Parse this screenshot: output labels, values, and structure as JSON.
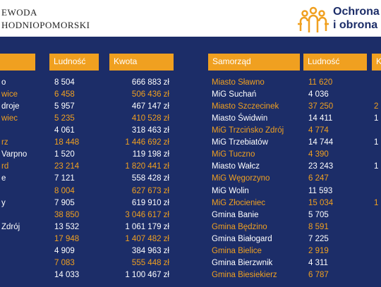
{
  "header": {
    "org_lines": [
      "EWODA",
      "HODNIOPOMORSKI"
    ],
    "logo_lines": [
      "Ochrona",
      "i obrona c"
    ]
  },
  "tables": [
    {
      "headers": [
        null,
        "Ludność",
        "Kwota"
      ],
      "rows": [
        [
          "o",
          "8 504",
          "666 883 zł"
        ],
        [
          "wice",
          "6 458",
          "506 436 zł"
        ],
        [
          "droje",
          "5 957",
          "467 147 zł"
        ],
        [
          "wiec",
          "5 235",
          "410 528 zł"
        ],
        [
          null,
          "4 061",
          "318 463 zł"
        ],
        [
          "rz",
          "18 448",
          "1 446 692 zł"
        ],
        [
          "Varpno",
          "1 520",
          "119 198 zł"
        ],
        [
          "rd",
          "23 214",
          "1 820 441 zł"
        ],
        [
          "e",
          "7 121",
          "558 428 zł"
        ],
        [
          null,
          "8 004",
          "627 673 zł"
        ],
        [
          "y",
          "7 905",
          "619 910 zł"
        ],
        [
          null,
          "38 850",
          "3 046 617 zł"
        ],
        [
          "Zdrój",
          "13 532",
          "1 061 179 zł"
        ],
        [
          null,
          "17 948",
          "1 407 482 zł"
        ],
        [
          null,
          "4 909",
          "384 963 zł"
        ],
        [
          null,
          "7 083",
          "555 448 zł"
        ],
        [
          null,
          "14 033",
          "1 100 467 zł"
        ]
      ]
    },
    {
      "headers": [
        "Samorząd",
        "Ludność",
        "Kw"
      ],
      "rows": [
        [
          "Miasto Sławno",
          "11 620",
          null
        ],
        [
          "MiG Suchań",
          "4 036",
          null
        ],
        [
          "Miasto Szczecinek",
          "37 250",
          "2"
        ],
        [
          "Miasto Świdwin",
          "14 411",
          "1"
        ],
        [
          "MiG Trzcińsko Zdrój",
          "4 774",
          null
        ],
        [
          "MiG Trzebiatów",
          "14 744",
          "1"
        ],
        [
          "MiG Tuczno",
          "4 390",
          null
        ],
        [
          "Miasto Wałcz",
          "23 243",
          "1"
        ],
        [
          "MiG Węgorzyno",
          "6 247",
          null
        ],
        [
          "MiG Wolin",
          "11 593",
          null
        ],
        [
          "MiG Złocieniec",
          "15 034",
          "1"
        ],
        [
          "Gmina Banie",
          "5 705",
          null
        ],
        [
          "Gmina Będzino",
          "8 591",
          null
        ],
        [
          "Gmina Białogard",
          "7 225",
          null
        ],
        [
          "Gmina Bielice",
          "2 919",
          null
        ],
        [
          "Gmina Bierzwnik",
          "4 311",
          null
        ],
        [
          "Gmina Biesiekierz",
          "6 787",
          null
        ]
      ]
    }
  ]
}
